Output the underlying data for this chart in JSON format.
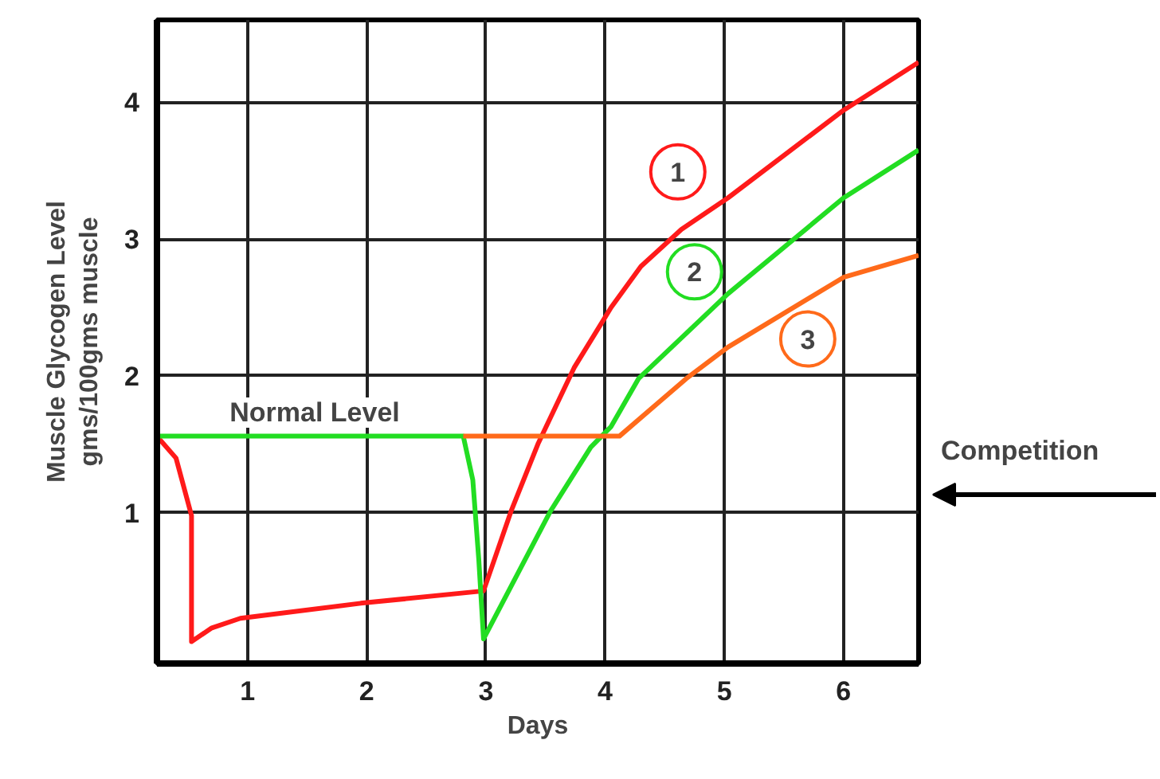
{
  "chart_data": {
    "type": "line",
    "xlabel": "Days",
    "ylabel": "Muscle Glycogen Level\ngms/100gms muscle",
    "xlim": [
      0.24,
      6.63
    ],
    "ylim": [
      -0.1,
      4.6
    ],
    "xticks": [
      1,
      2,
      3,
      4,
      5,
      6
    ],
    "yticks": [
      1,
      2,
      3,
      4
    ],
    "grid": true,
    "marker": "none",
    "line_style": "solid",
    "series": [
      {
        "color": "#ff1a1a",
        "x": [
          0.24,
          0.4,
          0.53,
          0.53,
          0.7,
          0.94,
          1.95,
          2.98,
          3.21,
          3.44,
          3.74,
          4.05,
          4.3,
          4.64,
          5.03,
          6.0,
          6.63
        ],
        "values": [
          1.56,
          1.4,
          0.98,
          0.06,
          0.16,
          0.23,
          0.34,
          0.43,
          1.01,
          1.51,
          2.06,
          2.5,
          2.8,
          3.07,
          3.3,
          3.94,
          4.29
        ]
      },
      {
        "color": "#22dd22",
        "x": [
          0.24,
          2.81,
          2.89,
          2.94,
          2.98,
          3.54,
          3.88,
          4.05,
          4.28,
          5.03,
          6.0,
          6.63
        ],
        "values": [
          1.56,
          1.56,
          1.24,
          0.66,
          0.08,
          1.01,
          1.48,
          1.63,
          1.98,
          2.6,
          3.3,
          3.65
        ]
      },
      {
        "color": "#ff6a1a",
        "x": [
          2.81,
          4.12,
          4.68,
          5.03,
          6.0,
          6.63
        ],
        "values": [
          1.56,
          1.56,
          1.98,
          2.21,
          2.72,
          2.88
        ]
      }
    ],
    "annotations": [
      "Normal Level",
      {
        "text": "1",
        "x": 4.61,
        "y": 3.49
      },
      {
        "text": "2",
        "x": 4.75,
        "y": 2.76
      },
      {
        "text": "3",
        "x": 5.7,
        "y": 2.27
      },
      "Competition"
    ]
  }
}
